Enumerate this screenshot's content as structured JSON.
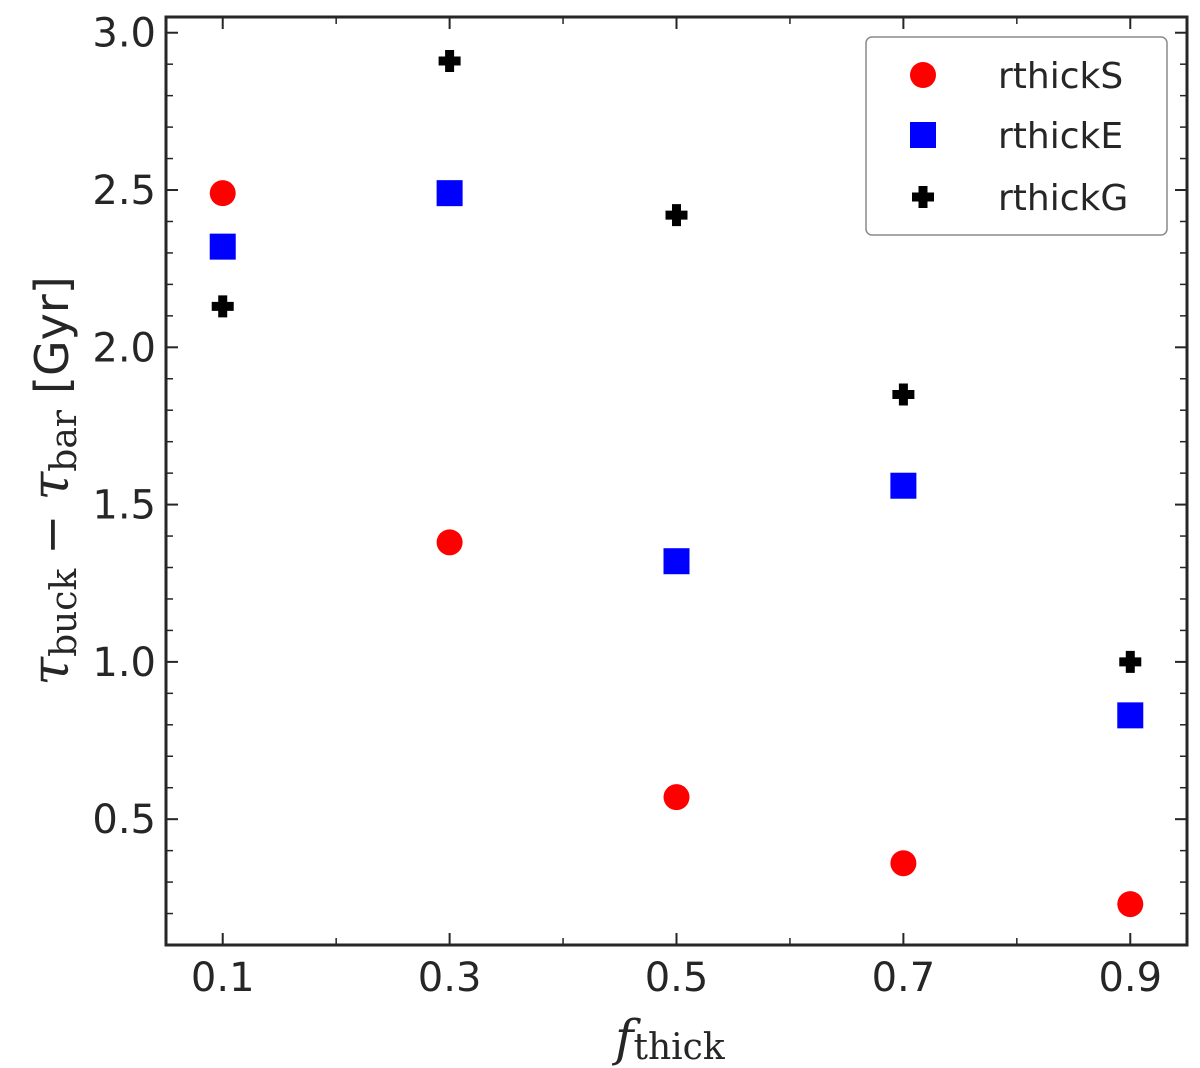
{
  "chart_data": {
    "type": "scatter",
    "xlabel": {
      "main": "f",
      "sub": "thick"
    },
    "ylabel": {
      "tau": "τ",
      "sub1": "buck",
      "minus": "−",
      "sub2": "bar",
      "unit": "[Gyr]"
    },
    "xlim": [
      0.05,
      0.95
    ],
    "ylim": [
      0.1,
      3.05
    ],
    "x_ticks": [
      0.1,
      0.3,
      0.5,
      0.7,
      0.9
    ],
    "x_tick_labels": [
      "0.1",
      "0.3",
      "0.5",
      "0.7",
      "0.9"
    ],
    "y_ticks": [
      0.5,
      1.0,
      1.5,
      2.0,
      2.5,
      3.0
    ],
    "y_tick_labels": [
      "0.5",
      "1.0",
      "1.5",
      "2.0",
      "2.5",
      "3.0"
    ],
    "grid": false,
    "legend_position": "top-right",
    "series": [
      {
        "name": "rthickS",
        "marker": "circle",
        "color": "#ff0000",
        "x": [
          0.1,
          0.3,
          0.5,
          0.7,
          0.9
        ],
        "y": [
          2.49,
          1.38,
          0.57,
          0.36,
          0.23
        ]
      },
      {
        "name": "rthickE",
        "marker": "square",
        "color": "#0000ff",
        "x": [
          0.1,
          0.3,
          0.5,
          0.7,
          0.9
        ],
        "y": [
          2.32,
          2.49,
          1.32,
          1.56,
          0.83
        ]
      },
      {
        "name": "rthickG",
        "marker": "plus",
        "color": "#000000",
        "x": [
          0.1,
          0.3,
          0.5,
          0.7,
          0.9
        ],
        "y": [
          2.13,
          2.91,
          2.42,
          1.85,
          1.0
        ]
      }
    ]
  }
}
